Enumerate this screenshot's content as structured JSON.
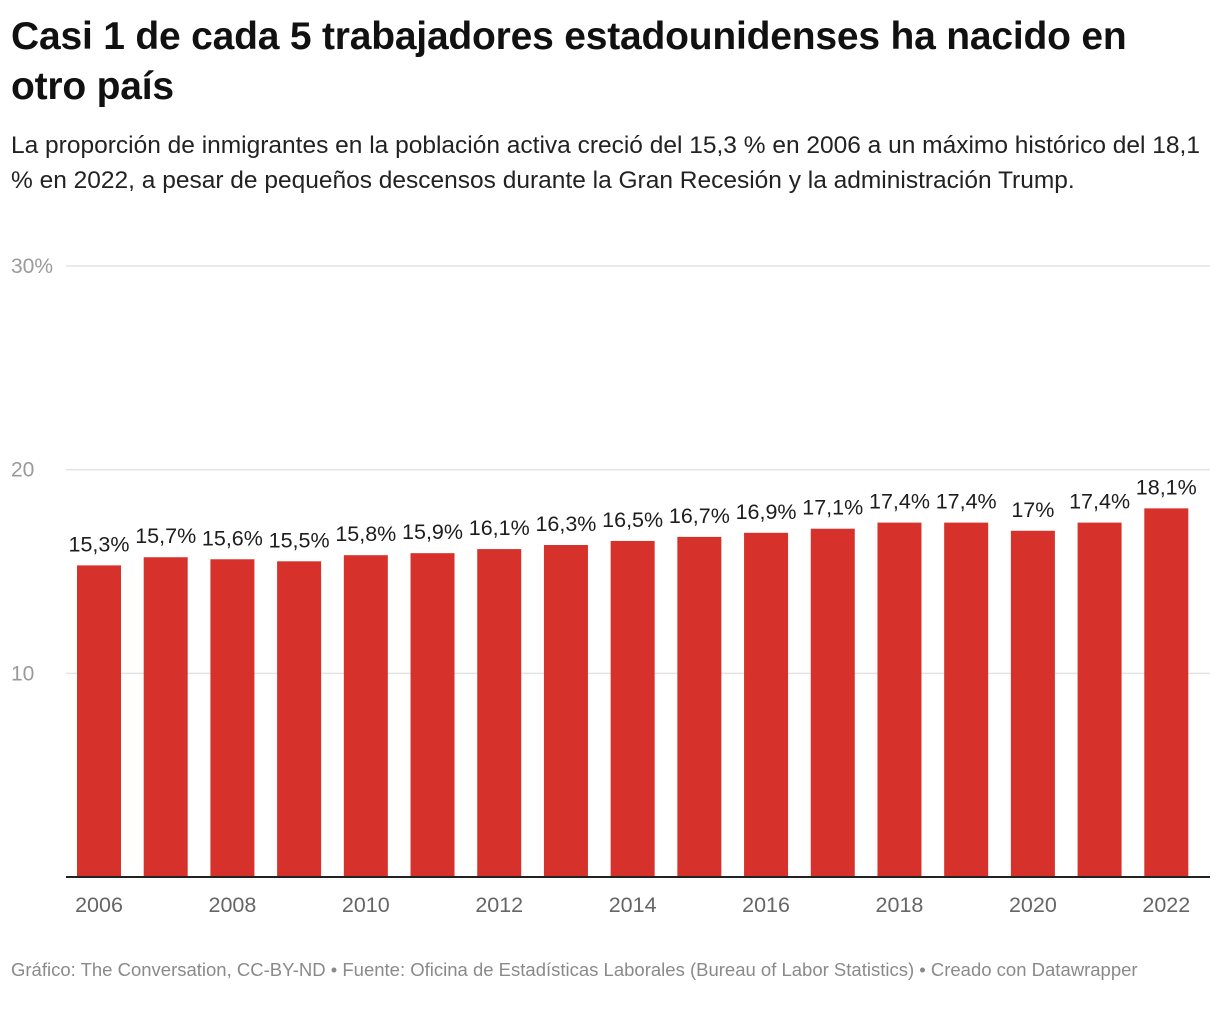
{
  "title": "Casi 1 de cada 5 trabajadores estadounidenses ha nacido en otro país",
  "subtitle": "La proporción de inmigrantes en la población activa creció del 15,3 % en 2006 a un máximo histórico del 18,1 % en 2022, a pesar de pequeños descensos durante la Gran Recesión y la administración Trump.",
  "footer": "Gráfico: The Conversation, CC-BY-ND • Fuente: Oficina de Estadísticas Laborales (Bureau of Labor Statistics) • Creado con Datawrapper",
  "colors": {
    "bar": "#d6312b",
    "grid": "#e3e3e3",
    "baseline": "#222222"
  },
  "chart_data": {
    "type": "bar",
    "categories": [
      "2006",
      "2007",
      "2008",
      "2009",
      "2010",
      "2011",
      "2012",
      "2013",
      "2014",
      "2015",
      "2016",
      "2017",
      "2018",
      "2019",
      "2020",
      "2021",
      "2022"
    ],
    "values": [
      15.3,
      15.7,
      15.6,
      15.5,
      15.8,
      15.9,
      16.1,
      16.3,
      16.5,
      16.7,
      16.9,
      17.1,
      17.4,
      17.4,
      17,
      17.4,
      18.1
    ],
    "value_labels": [
      "15,3%",
      "15,7%",
      "15,6%",
      "15,5%",
      "15,8%",
      "15,9%",
      "16,1%",
      "16,3%",
      "16,5%",
      "16,7%",
      "16,9%",
      "17,1%",
      "17,4%",
      "17,4%",
      "17%",
      "17,4%",
      "18,1%"
    ],
    "x_tick_labels": [
      "2006",
      "2008",
      "2010",
      "2012",
      "2014",
      "2016",
      "2018",
      "2020",
      "2022"
    ],
    "y_ticks": [
      10,
      20,
      30
    ],
    "y_tick_labels": [
      "10",
      "20",
      "30%"
    ],
    "ylim": [
      0,
      30
    ],
    "grid": true,
    "xlabel": "",
    "ylabel": ""
  }
}
